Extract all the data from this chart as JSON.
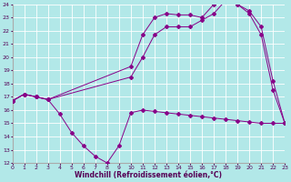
{
  "xlabel": "Windchill (Refroidissement éolien,°C)",
  "bg_color": "#b2e8e8",
  "grid_color": "#ffffff",
  "line_color": "#880088",
  "xlim": [
    0,
    23
  ],
  "ylim": [
    12,
    24
  ],
  "xticks": [
    0,
    1,
    2,
    3,
    4,
    5,
    6,
    7,
    8,
    9,
    10,
    11,
    12,
    13,
    14,
    15,
    16,
    17,
    18,
    19,
    20,
    21,
    22,
    23
  ],
  "yticks": [
    12,
    13,
    14,
    15,
    16,
    17,
    18,
    19,
    20,
    21,
    22,
    23,
    24
  ],
  "series1_x": [
    0,
    1,
    2,
    3,
    4,
    5,
    6,
    7,
    8,
    9,
    10,
    11,
    12,
    13,
    14,
    15,
    16,
    17,
    18,
    19,
    20,
    21,
    22,
    23
  ],
  "series1_y": [
    16.7,
    17.2,
    17.0,
    16.8,
    15.7,
    14.3,
    13.3,
    12.5,
    12.0,
    13.3,
    15.8,
    16.0,
    15.9,
    15.8,
    15.7,
    15.6,
    15.5,
    15.4,
    15.3,
    15.2,
    15.1,
    15.0,
    15.0,
    15.0
  ],
  "series2_x": [
    0,
    1,
    2,
    3,
    10,
    11,
    12,
    13,
    14,
    15,
    16,
    17,
    18,
    19,
    20,
    21,
    22,
    23
  ],
  "series2_y": [
    16.7,
    17.2,
    17.0,
    16.8,
    18.5,
    20.0,
    21.7,
    22.3,
    22.3,
    22.3,
    22.8,
    23.3,
    24.3,
    24.0,
    23.3,
    21.7,
    17.5,
    15.0
  ],
  "series3_x": [
    0,
    1,
    2,
    3,
    10,
    11,
    12,
    13,
    14,
    15,
    16,
    17,
    18,
    19,
    20,
    21,
    22,
    23
  ],
  "series3_y": [
    16.7,
    17.2,
    17.0,
    16.8,
    19.3,
    21.7,
    23.0,
    23.3,
    23.2,
    23.2,
    23.0,
    24.0,
    24.5,
    24.0,
    23.5,
    22.3,
    18.2,
    15.0
  ]
}
